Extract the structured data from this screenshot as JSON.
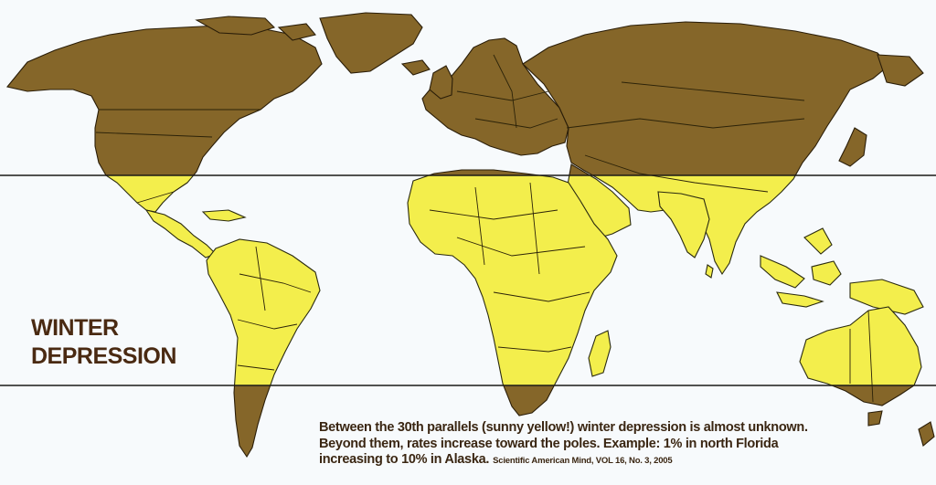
{
  "title": {
    "line1": "WINTER",
    "line2": "DEPRESSION"
  },
  "caption": {
    "line1": "Between the 30th parallels (sunny yellow!) winter depression is almost unknown.",
    "line2": "Beyond them, rates increase toward the poles.  Example: 1% in north Florida",
    "line3": "increasing to 10% in Alaska.",
    "citation": "Scientific American Mind, VOL 16, No. 3, 2005"
  },
  "colors": {
    "high_latitude": "#856629",
    "tropical_zone": "#f3ee4c",
    "background": "#f7fafc",
    "text": "#4a2a12"
  }
}
